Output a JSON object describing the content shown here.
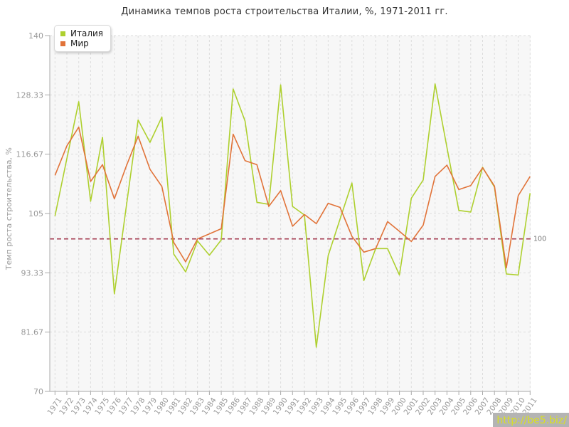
{
  "title": "Динамика темпов роста строительства Италии, %, 1971-2011 гг.",
  "watermark": "http://be5.biz/",
  "chart_data": {
    "type": "line",
    "title": "Динамика темпов роста строительства Италии, %, 1971-2011 гг.",
    "xlabel": "",
    "ylabel": "Темп роста строительства, %",
    "ylim": [
      70,
      140
    ],
    "yticks": [
      "140",
      "128.33",
      "116.67",
      "105",
      "93.33",
      "81.67",
      "70"
    ],
    "ytick_values": [
      140,
      128.33,
      116.67,
      105,
      93.33,
      81.67,
      70
    ],
    "grid": true,
    "legend_position": "top-left",
    "reference_line": {
      "value": 100,
      "label": "100",
      "style": "dashed",
      "color": "#a43b50"
    },
    "x": [
      1971,
      1972,
      1973,
      1974,
      1975,
      1976,
      1977,
      1978,
      1979,
      1980,
      1981,
      1982,
      1983,
      1984,
      1985,
      1986,
      1987,
      1988,
      1989,
      1990,
      1991,
      1992,
      1993,
      1994,
      1995,
      1996,
      1997,
      1998,
      1999,
      2000,
      2001,
      2002,
      2003,
      2004,
      2005,
      2006,
      2007,
      2008,
      2009,
      2010,
      2011
    ],
    "series": [
      {
        "name": "Италия",
        "color": "#aed02f",
        "values": [
          104.5,
          115.8,
          127.0,
          107.4,
          120.0,
          89.2,
          106.3,
          123.4,
          119.0,
          124.0,
          97.0,
          93.5,
          99.6,
          96.8,
          99.8,
          129.5,
          123.2,
          107.2,
          106.8,
          130.3,
          106.4,
          104.7,
          78.7,
          96.7,
          103.9,
          111.0,
          91.8,
          98.1,
          98.1,
          92.9,
          108.0,
          111.6,
          130.5,
          118.0,
          105.6,
          105.3,
          114.1,
          110.2,
          93.1,
          92.9,
          109.0
        ]
      },
      {
        "name": "Мир",
        "color": "#e17339",
        "values": [
          112.5,
          118.3,
          122.0,
          111.3,
          114.6,
          107.9,
          114.3,
          120.2,
          113.7,
          110.3,
          99.3,
          95.5,
          100.0,
          101.0,
          102.0,
          120.6,
          115.4,
          114.6,
          106.4,
          109.5,
          102.5,
          104.8,
          103.0,
          107.0,
          106.2,
          100.5,
          97.4,
          98.1,
          103.4,
          101.5,
          99.5,
          102.7,
          112.3,
          114.5,
          109.7,
          110.5,
          114.0,
          110.4,
          94.3,
          108.5,
          112.3
        ]
      }
    ]
  },
  "style_colors": {
    "plot_bg": "#f7f7f7",
    "grid": "#dcdcdc",
    "axis": "#aaaaaa",
    "tick_text": "#999999",
    "title_text": "#333333",
    "ref_label_text": "#777777",
    "watermark_bg": "#b4b4b4",
    "watermark_text": "#d9e021"
  }
}
